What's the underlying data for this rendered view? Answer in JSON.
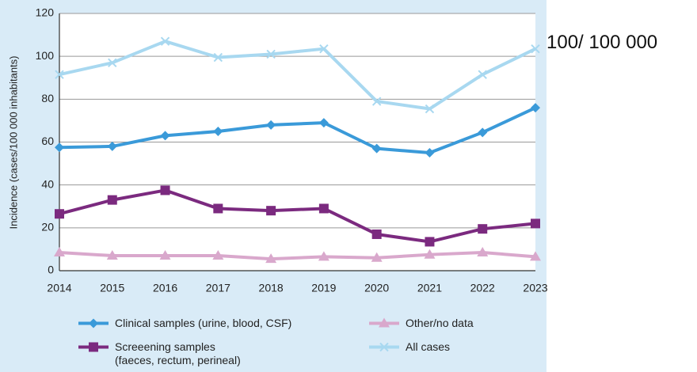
{
  "chart_data": {
    "type": "line",
    "y_label": "Incidence (cases/100 000 inhabitants)",
    "annotation": "100/ 100 000",
    "categories": [
      "2014",
      "2015",
      "2016",
      "2017",
      "2018",
      "2019",
      "2020",
      "2021",
      "2022",
      "2023"
    ],
    "series": [
      {
        "name": "Clinical samples (urine, blood, CSF)",
        "color": "#3a9ad9",
        "marker": "diamond",
        "values": [
          57.5,
          58,
          63,
          65,
          68,
          69,
          57,
          55,
          64.5,
          76
        ]
      },
      {
        "name": "Other/no data",
        "color": "#d9a8cc",
        "marker": "triangle",
        "values": [
          8.5,
          7,
          7,
          7,
          5.5,
          6.5,
          6,
          7.5,
          8.5,
          6.5
        ]
      },
      {
        "name": "Screeening samples\n(faeces, rectum, perineal)",
        "color": "#7b2a7f",
        "marker": "square",
        "values": [
          26.5,
          33,
          37.5,
          29,
          28,
          29,
          17,
          13.5,
          19.5,
          22
        ]
      },
      {
        "name": "All cases",
        "color": "#a8d8f0",
        "marker": "x",
        "values": [
          91.5,
          97,
          107,
          99.5,
          101,
          103.5,
          79,
          75.5,
          91.5,
          103.5
        ]
      }
    ],
    "ylim": [
      0,
      120
    ],
    "yticks": [
      0,
      20,
      40,
      60,
      80,
      100,
      120
    ],
    "grid": true
  }
}
